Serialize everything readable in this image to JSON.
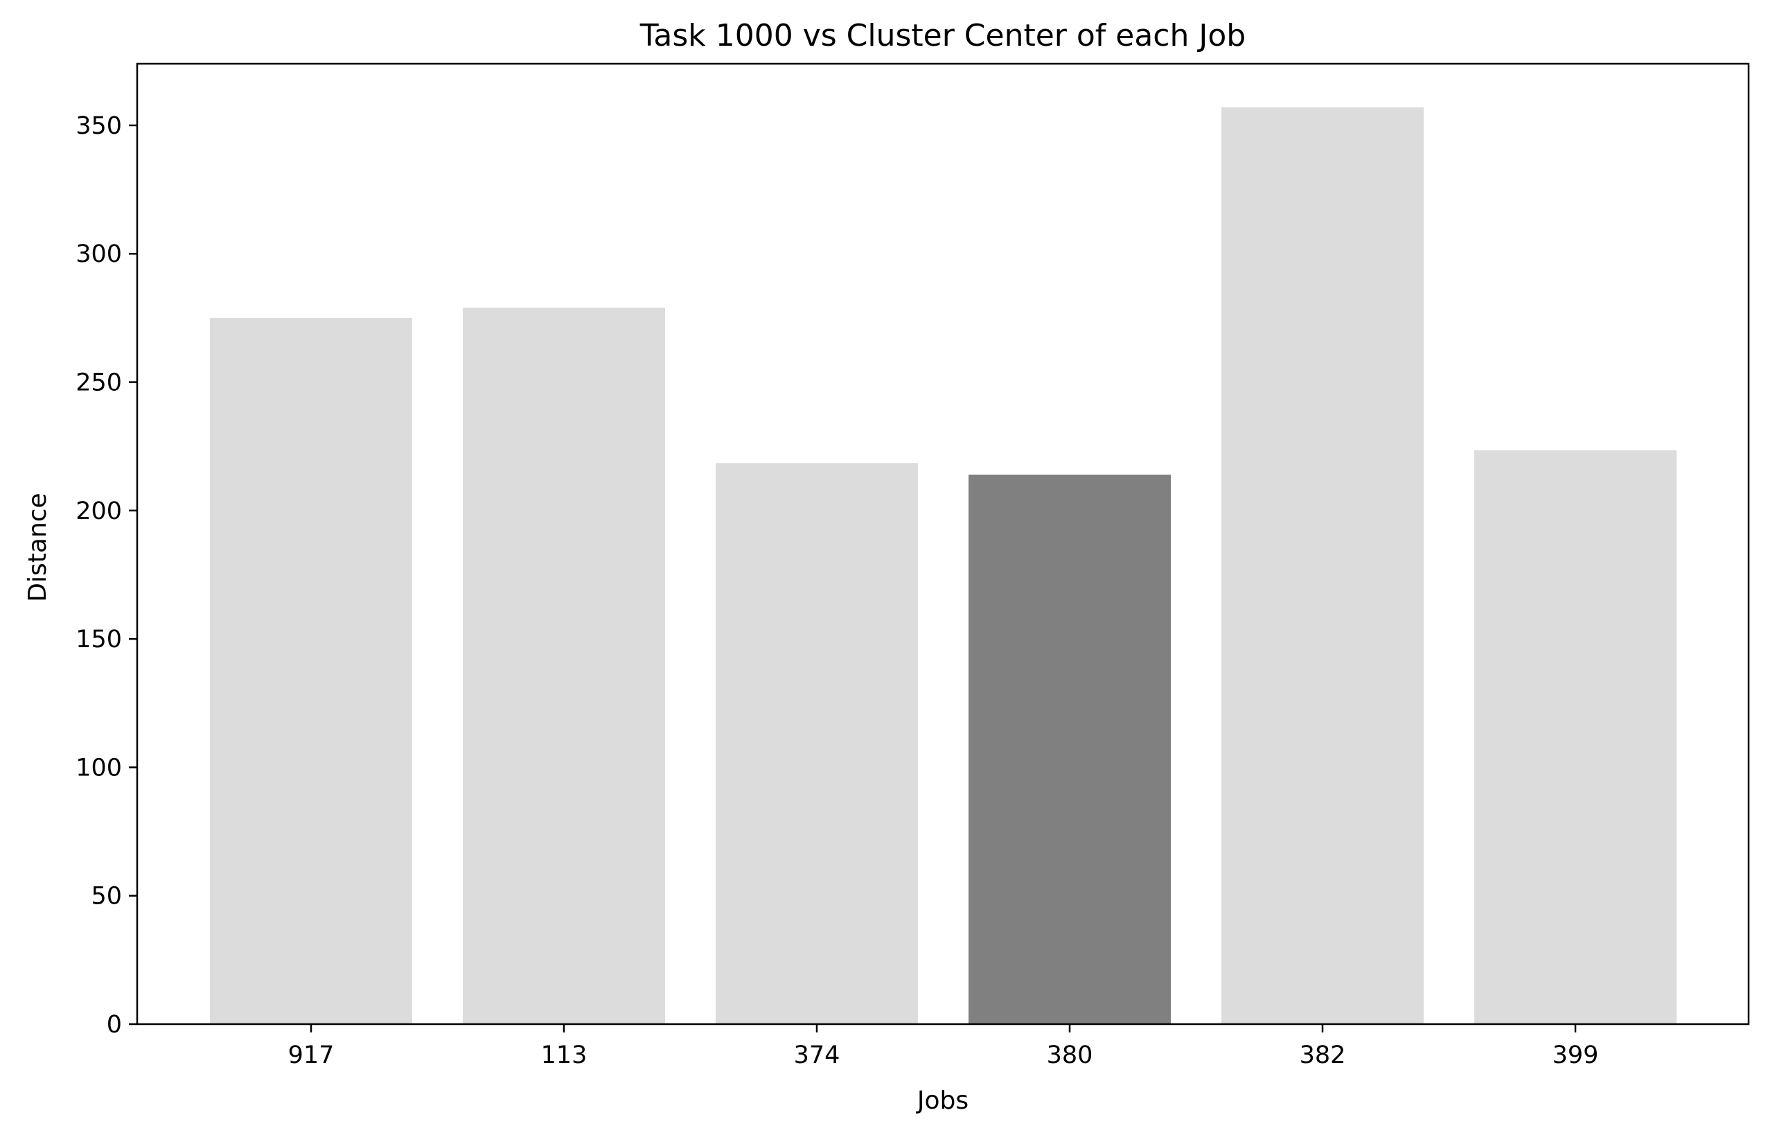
{
  "chart_data": {
    "type": "bar",
    "title": "Task 1000 vs Cluster Center of each Job",
    "xlabel": "Jobs",
    "ylabel": "Distance",
    "categories": [
      "917",
      "113",
      "374",
      "380",
      "382",
      "399"
    ],
    "values": [
      275,
      279,
      218.5,
      214,
      357,
      223.5
    ],
    "highlight_index": 3,
    "ylim": [
      0,
      374
    ],
    "yticks": [
      0,
      50,
      100,
      150,
      200,
      250,
      300,
      350
    ],
    "grid": false,
    "colors": {
      "bar": "#dcdcdc",
      "highlight": "#808080",
      "axis": "#000000"
    }
  }
}
